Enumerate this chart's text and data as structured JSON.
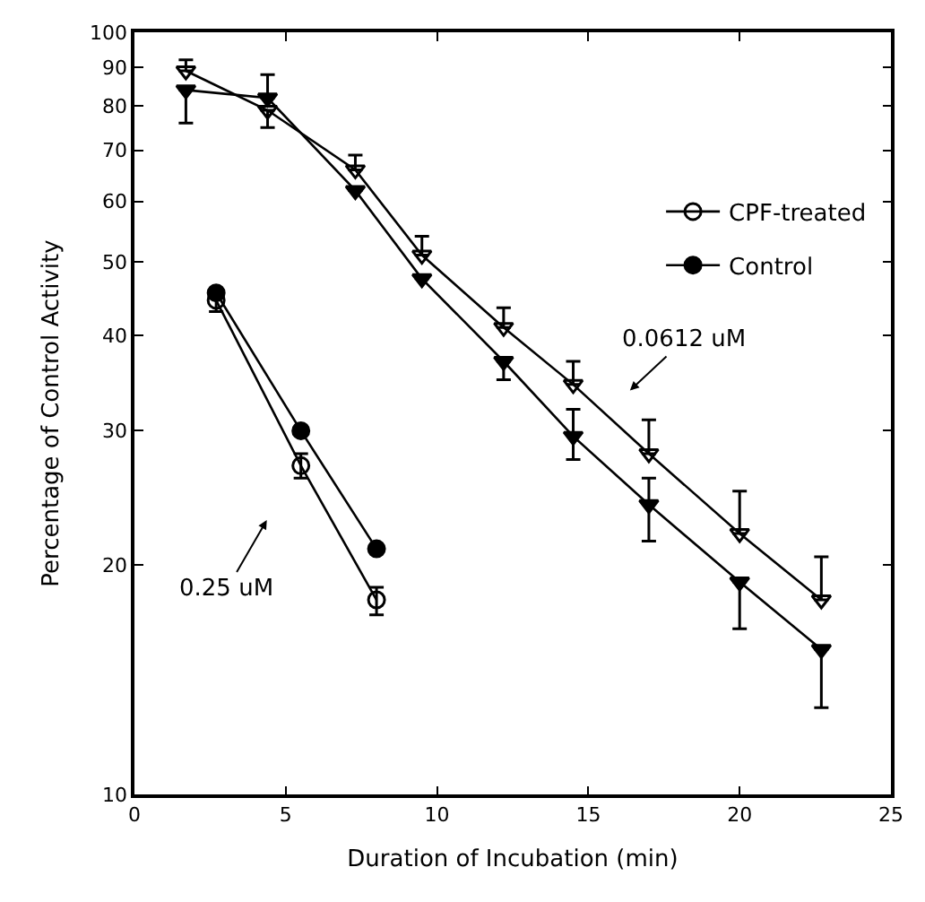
{
  "chart_data": {
    "type": "line",
    "xlabel": "Duration of Incubation (min)",
    "ylabel": "Percentage of Control Activity",
    "xlim": [
      0,
      25
    ],
    "xticks": [
      0,
      5,
      10,
      15,
      20,
      25
    ],
    "ylim": [
      10,
      100
    ],
    "yticks": [
      10,
      20,
      30,
      40,
      50,
      60,
      70,
      80,
      90,
      100
    ],
    "log": "y",
    "grid": false,
    "legend": "top right",
    "series": [
      {
        "name": "CPF-treated",
        "color": "#000000",
        "marker": "circle-open",
        "x": [
          2.7,
          5.5,
          8
        ],
        "values": [
          44.5,
          27,
          18
        ],
        "errors": [
          [
            43,
            46
          ],
          [
            26,
            28
          ],
          [
            17.2,
            18.7
          ]
        ]
      },
      {
        "name": "Control",
        "color": "#000000",
        "marker": "circle",
        "x": [
          2.7,
          5.5,
          8
        ],
        "values": [
          45.5,
          30,
          21
        ]
      },
      {
        "color": "#000000",
        "marker": "triangle-down-open",
        "x": [
          1.7,
          4.4,
          7.3,
          9.5,
          12.2,
          14.5,
          17,
          20,
          22.7
        ],
        "values": [
          89,
          79,
          66,
          51,
          41,
          34.5,
          28,
          22,
          18
        ],
        "errors": [
          [
            89,
            92
          ],
          [
            75,
            79
          ],
          [
            66,
            69
          ],
          [
            51,
            54
          ],
          [
            41,
            43.5
          ],
          [
            34.5,
            37
          ],
          [
            28,
            31
          ],
          [
            22,
            25
          ],
          [
            18,
            20.5
          ]
        ]
      },
      {
        "color": "#000000",
        "marker": "triangle-down",
        "x": [
          1.7,
          4.4,
          7.3,
          9.5,
          12.2,
          14.5,
          17,
          20,
          22.7
        ],
        "values": [
          84,
          82,
          62,
          47.5,
          37,
          29.5,
          24,
          19,
          15.5
        ],
        "errors": [
          [
            76,
            84
          ],
          [
            82,
            88
          ],
          null,
          null,
          [
            35,
            37
          ],
          [
            27.5,
            32
          ],
          [
            21.5,
            26
          ],
          [
            16.5,
            19
          ],
          [
            13,
            15.5
          ]
        ]
      }
    ],
    "annotations": [
      "0.25 uM",
      "0.0612 uM"
    ]
  }
}
